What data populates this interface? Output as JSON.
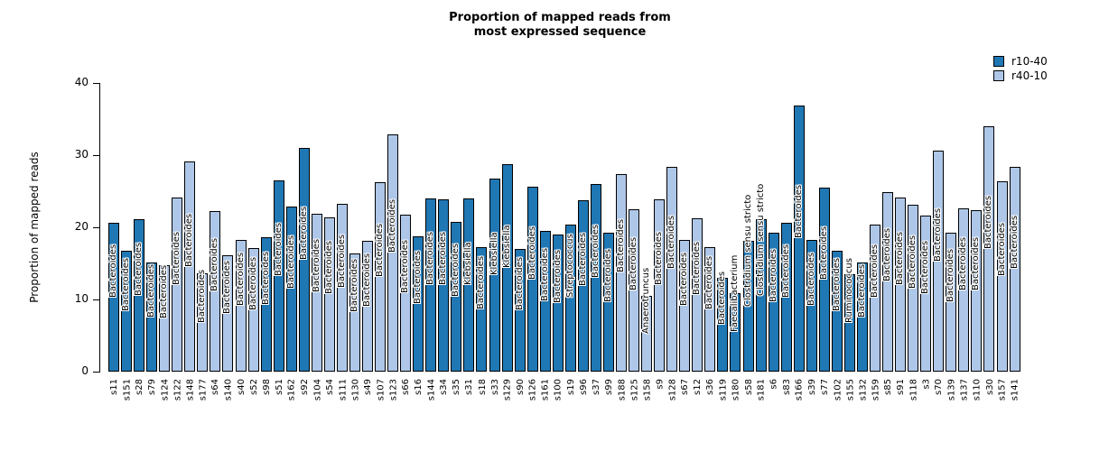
{
  "title": {
    "line1": "Proportion of mapped reads from",
    "line2": "most expressed sequence"
  },
  "y_axis": {
    "label": "Proportion of mapped reads",
    "ticks": [
      0,
      10,
      20,
      30,
      40
    ]
  },
  "legend": {
    "items": [
      {
        "label": "r10-40",
        "color": "#1f77b4"
      },
      {
        "label": "r40-10",
        "color": "#aec7e8"
      }
    ]
  },
  "chart_data": {
    "type": "bar",
    "title": "Proportion of mapped reads from most expressed sequence",
    "xlabel": "",
    "ylabel": "Proportion of mapped reads",
    "ylim": [
      0,
      40
    ],
    "yticks": [
      0,
      10,
      20,
      30,
      40
    ],
    "grid": false,
    "legend_position": "top-right",
    "series_colors": {
      "r10-40": "#1f77b4",
      "r40-10": "#aec7e8"
    },
    "bar_label_meaning": "genus of most expressed sequence, printed vertically inside each bar",
    "bars": [
      {
        "sample": "s11",
        "value": 20.6,
        "group": "r10-40",
        "taxon": "Bacteroides"
      },
      {
        "sample": "s151",
        "value": 16.7,
        "group": "r10-40",
        "taxon": "Bacteroides"
      },
      {
        "sample": "s28",
        "value": 21.1,
        "group": "r10-40",
        "taxon": "Bacteroides"
      },
      {
        "sample": "s79",
        "value": 15.1,
        "group": "r10-40",
        "taxon": "Bacteroides"
      },
      {
        "sample": "s124",
        "value": 14.8,
        "group": "r40-10",
        "taxon": "Bacteroides"
      },
      {
        "sample": "s122",
        "value": 24.1,
        "group": "r40-10",
        "taxon": "Bacteroides"
      },
      {
        "sample": "s148",
        "value": 29.1,
        "group": "r40-10",
        "taxon": "Bacteroides"
      },
      {
        "sample": "s177",
        "value": 13.6,
        "group": "r40-10",
        "taxon": "Bacteroides"
      },
      {
        "sample": "s64",
        "value": 22.2,
        "group": "r40-10",
        "taxon": "Bacteroides"
      },
      {
        "sample": "s140",
        "value": 16.1,
        "group": "r40-10",
        "taxon": "Bacteroides"
      },
      {
        "sample": "s40",
        "value": 18.2,
        "group": "r40-10",
        "taxon": "Bacteroides"
      },
      {
        "sample": "s52",
        "value": 17.1,
        "group": "r40-10",
        "taxon": "Bacteroides"
      },
      {
        "sample": "s98",
        "value": 18.6,
        "group": "r10-40",
        "taxon": "Bacteroides"
      },
      {
        "sample": "s51",
        "value": 26.5,
        "group": "r10-40",
        "taxon": "Bacteroides"
      },
      {
        "sample": "s162",
        "value": 22.9,
        "group": "r10-40",
        "taxon": "Bacteroides"
      },
      {
        "sample": "s92",
        "value": 31.0,
        "group": "r10-40",
        "taxon": "Bacteroides"
      },
      {
        "sample": "s104",
        "value": 21.9,
        "group": "r40-10",
        "taxon": "Bacteroides"
      },
      {
        "sample": "s54",
        "value": 21.4,
        "group": "r40-10",
        "taxon": "Bacteroides"
      },
      {
        "sample": "s111",
        "value": 23.3,
        "group": "r40-10",
        "taxon": "Bacteroides"
      },
      {
        "sample": "s130",
        "value": 16.4,
        "group": "r40-10",
        "taxon": "Bacteroides"
      },
      {
        "sample": "s49",
        "value": 18.1,
        "group": "r40-10",
        "taxon": "Bacteroides"
      },
      {
        "sample": "s107",
        "value": 26.2,
        "group": "r40-10",
        "taxon": "Bacteroides"
      },
      {
        "sample": "s123",
        "value": 32.9,
        "group": "r40-10",
        "taxon": "Bacteroides"
      },
      {
        "sample": "s66",
        "value": 21.7,
        "group": "r40-10",
        "taxon": "Bacteroides"
      },
      {
        "sample": "s16",
        "value": 18.8,
        "group": "r10-40",
        "taxon": "Bacteroides"
      },
      {
        "sample": "s144",
        "value": 24.0,
        "group": "r10-40",
        "taxon": "Bacteroides"
      },
      {
        "sample": "s34",
        "value": 23.9,
        "group": "r10-40",
        "taxon": "Bacteroides"
      },
      {
        "sample": "s35",
        "value": 20.8,
        "group": "r10-40",
        "taxon": "Bacteroides"
      },
      {
        "sample": "s31",
        "value": 24.0,
        "group": "r10-40",
        "taxon": "Klebsiella"
      },
      {
        "sample": "s18",
        "value": 17.3,
        "group": "r10-40",
        "taxon": "Bacteroides"
      },
      {
        "sample": "s33",
        "value": 26.7,
        "group": "r10-40",
        "taxon": "Klebsiella"
      },
      {
        "sample": "s129",
        "value": 28.7,
        "group": "r10-40",
        "taxon": "Klebsiella"
      },
      {
        "sample": "s90",
        "value": 17.0,
        "group": "r10-40",
        "taxon": "Bacteroides"
      },
      {
        "sample": "s126",
        "value": 25.6,
        "group": "r10-40",
        "taxon": "Bacteroides"
      },
      {
        "sample": "s161",
        "value": 19.5,
        "group": "r10-40",
        "taxon": "Bacteroides"
      },
      {
        "sample": "s100",
        "value": 19.0,
        "group": "r10-40",
        "taxon": "Bacteroides"
      },
      {
        "sample": "s19",
        "value": 20.4,
        "group": "r10-40",
        "taxon": "Streptococcus"
      },
      {
        "sample": "s96",
        "value": 23.8,
        "group": "r10-40",
        "taxon": "Bacteroides"
      },
      {
        "sample": "s37",
        "value": 26.0,
        "group": "r10-40",
        "taxon": "Bacteroides"
      },
      {
        "sample": "s99",
        "value": 19.3,
        "group": "r10-40",
        "taxon": "Bacteroides"
      },
      {
        "sample": "s188",
        "value": 27.4,
        "group": "r40-10",
        "taxon": "Bacteroides"
      },
      {
        "sample": "s125",
        "value": 22.5,
        "group": "r40-10",
        "taxon": "Bacteroides"
      },
      {
        "sample": "s158",
        "value": 10.5,
        "group": "r40-10",
        "taxon": "Anaerotruncus"
      },
      {
        "sample": "s9",
        "value": 23.9,
        "group": "r40-10",
        "taxon": "Bacteroides"
      },
      {
        "sample": "s128",
        "value": 28.4,
        "group": "r40-10",
        "taxon": "Bacteroides"
      },
      {
        "sample": "s67",
        "value": 18.2,
        "group": "r40-10",
        "taxon": "Bacteroides"
      },
      {
        "sample": "s12",
        "value": 21.2,
        "group": "r40-10",
        "taxon": "Bacteroides"
      },
      {
        "sample": "s36",
        "value": 17.3,
        "group": "r40-10",
        "taxon": "Bacteroides"
      },
      {
        "sample": "s119",
        "value": 13.0,
        "group": "r10-40",
        "taxon": "Bacteroides"
      },
      {
        "sample": "s180",
        "value": 10.9,
        "group": "r10-40",
        "taxon": "Faecalibacterium"
      },
      {
        "sample": "s58",
        "value": 18.1,
        "group": "r10-40",
        "taxon": "Clostridium sensu stricto"
      },
      {
        "sample": "s181",
        "value": 21.1,
        "group": "r10-40",
        "taxon": "Clostridium sensu stricto"
      },
      {
        "sample": "s6",
        "value": 19.2,
        "group": "r10-40",
        "taxon": "Bacteroides"
      },
      {
        "sample": "s83",
        "value": 20.6,
        "group": "r10-40",
        "taxon": "Bacteroides"
      },
      {
        "sample": "s166",
        "value": 36.9,
        "group": "r10-40",
        "taxon": "Bacteroides"
      },
      {
        "sample": "s39",
        "value": 18.3,
        "group": "r10-40",
        "taxon": "Bacteroides"
      },
      {
        "sample": "s77",
        "value": 25.5,
        "group": "r10-40",
        "taxon": "Bacteroides"
      },
      {
        "sample": "s102",
        "value": 16.7,
        "group": "r10-40",
        "taxon": "Bacteroides"
      },
      {
        "sample": "s155",
        "value": 13.5,
        "group": "r10-40",
        "taxon": "Ruminococcus"
      },
      {
        "sample": "s132",
        "value": 15.1,
        "group": "r10-40",
        "taxon": "Bacteroides"
      },
      {
        "sample": "s159",
        "value": 20.4,
        "group": "r40-10",
        "taxon": "Bacteroides"
      },
      {
        "sample": "s85",
        "value": 24.9,
        "group": "r40-10",
        "taxon": "Bacteroides"
      },
      {
        "sample": "s91",
        "value": 24.1,
        "group": "r40-10",
        "taxon": "Bacteroides"
      },
      {
        "sample": "s118",
        "value": 23.1,
        "group": "r40-10",
        "taxon": "Bacteroides"
      },
      {
        "sample": "s3",
        "value": 21.6,
        "group": "r40-10",
        "taxon": "Bacteroides"
      },
      {
        "sample": "s70",
        "value": 30.6,
        "group": "r40-10",
        "taxon": "Bacteroides"
      },
      {
        "sample": "s139",
        "value": 19.3,
        "group": "r40-10",
        "taxon": "Bacteroides"
      },
      {
        "sample": "s137",
        "value": 22.6,
        "group": "r40-10",
        "taxon": "Bacteroides"
      },
      {
        "sample": "s110",
        "value": 22.4,
        "group": "r40-10",
        "taxon": "Bacteroides"
      },
      {
        "sample": "s30",
        "value": 34.0,
        "group": "r40-10",
        "taxon": "Bacteroides"
      },
      {
        "sample": "s157",
        "value": 26.4,
        "group": "r40-10",
        "taxon": "Bacteroides"
      },
      {
        "sample": "s141",
        "value": 28.4,
        "group": "r40-10",
        "taxon": "Bacteroides"
      }
    ]
  }
}
